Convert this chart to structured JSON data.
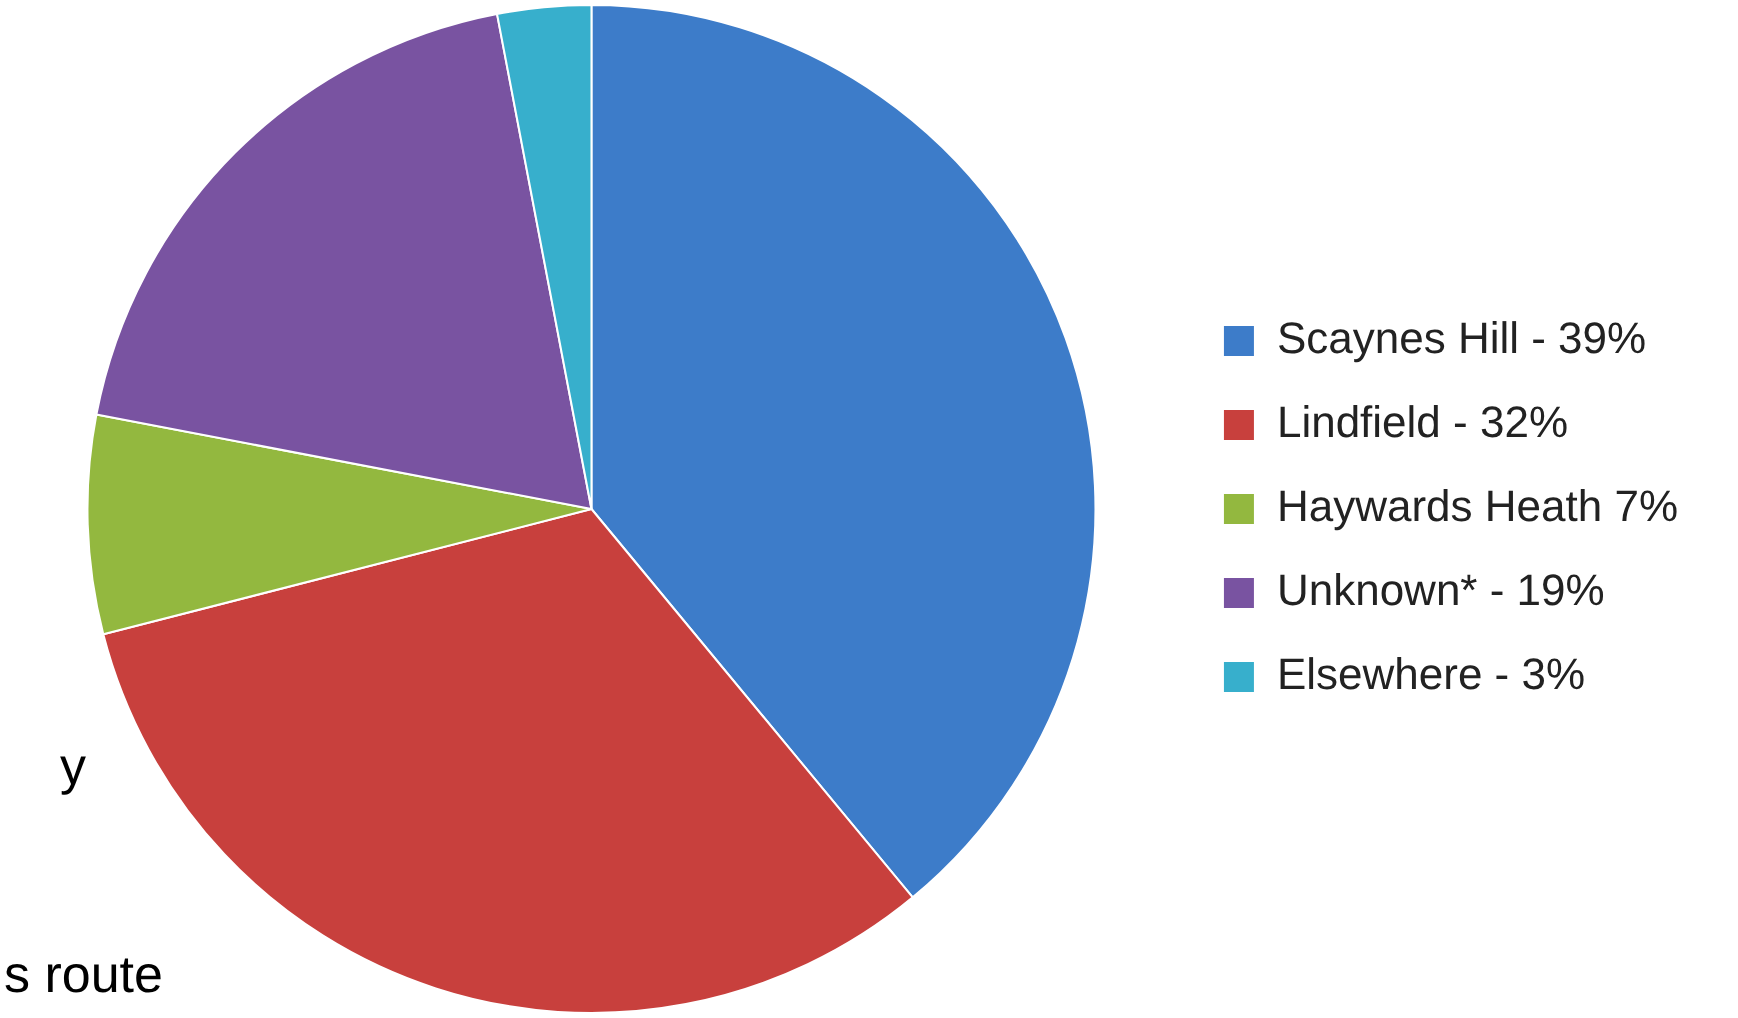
{
  "chart_data": {
    "type": "pie",
    "categories": [
      "Scaynes Hill - 39%",
      "Lindfield - 32%",
      "Haywards Heath 7%",
      "Unknown* - 19%",
      "Elsewhere - 3%"
    ],
    "values": [
      39,
      32,
      7,
      19,
      3
    ],
    "colors": [
      "#3d7cc9",
      "#c8403d",
      "#93b83f",
      "#7953a1",
      "#37afcc"
    ],
    "legend": "right",
    "annotations": [
      "y",
      "s route"
    ]
  }
}
